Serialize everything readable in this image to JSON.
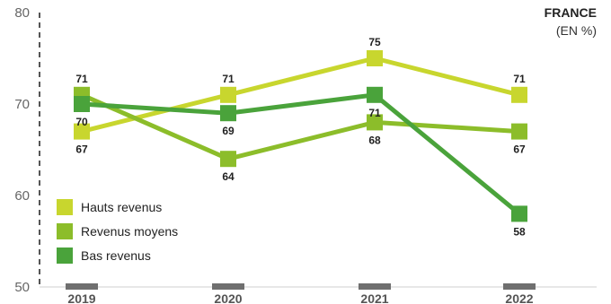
{
  "chart_data": {
    "type": "line",
    "title": "FRANCE",
    "subtitle": "(EN %)",
    "categories": [
      "2019",
      "2020",
      "2021",
      "2022"
    ],
    "ylim": [
      50,
      80
    ],
    "yticks": [
      50,
      60,
      70,
      80
    ],
    "grid": false,
    "legend_position": "bottom-left",
    "series": [
      {
        "name": "Hauts revenus",
        "color": "#c8d62e",
        "values": [
          67,
          71,
          75,
          71
        ]
      },
      {
        "name": "Revenus moyens",
        "color": "#8cbd2a",
        "values": [
          71,
          64,
          68,
          67
        ]
      },
      {
        "name": "Bas revenus",
        "color": "#4aa33b",
        "values": [
          70,
          69,
          71,
          58
        ]
      }
    ]
  }
}
